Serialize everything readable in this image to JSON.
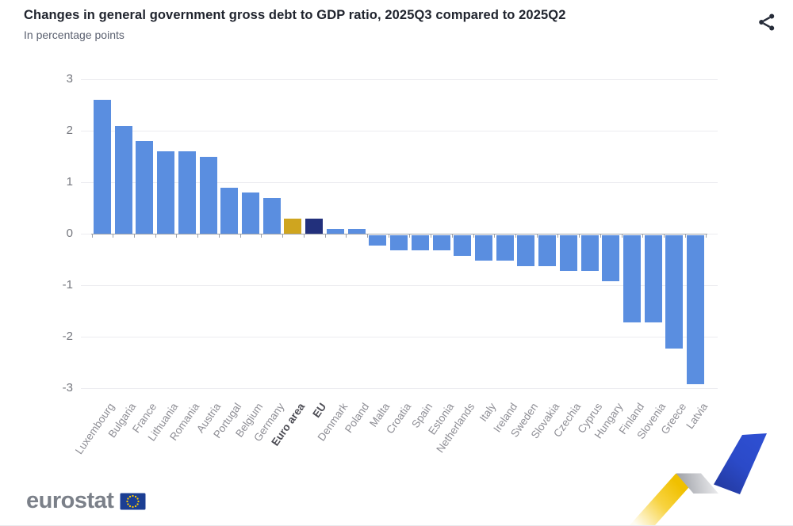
{
  "header": {
    "title": "Changes in general government gross debt to GDP ratio, 2025Q3 compared to 2025Q2",
    "subtitle": "In percentage points",
    "share_icon": "share-icon"
  },
  "chart_data": {
    "type": "bar",
    "title": "Changes in general government gross debt to GDP ratio, 2025Q3 compared to 2025Q2",
    "xlabel": "",
    "ylabel": "percentage points",
    "ylim": [
      -3,
      3
    ],
    "yticks": [
      3,
      2,
      1,
      0,
      -1,
      -2,
      -3
    ],
    "grid": true,
    "legend": false,
    "categories": [
      "Luxembourg",
      "Bulgaria",
      "France",
      "Lithuania",
      "Romania",
      "Austria",
      "Portugal",
      "Belgium",
      "Germany",
      "Euro area",
      "EU",
      "Denmark",
      "Poland",
      "Malta",
      "Croatia",
      "Spain",
      "Estonia",
      "Netherlands",
      "Italy",
      "Ireland",
      "Sweden",
      "Slovakia",
      "Czechia",
      "Cyprus",
      "Hungary",
      "Finland",
      "Slovenia",
      "Greece",
      "Latvia"
    ],
    "values": [
      2.6,
      2.1,
      1.8,
      1.6,
      1.6,
      1.5,
      0.9,
      0.8,
      0.7,
      0.3,
      0.3,
      0.1,
      0.1,
      -0.2,
      -0.3,
      -0.3,
      -0.3,
      -0.4,
      -0.5,
      -0.5,
      -0.6,
      -0.6,
      -0.7,
      -0.7,
      -0.9,
      -1.7,
      -1.7,
      -2.2,
      -2.9
    ],
    "bar_color_default": "#5A8EE0",
    "highlight_colors": {
      "Euro area": "#CFA51F",
      "EU": "#22307C"
    },
    "bold_categories": [
      "Euro area",
      "EU"
    ],
    "axis_color": "#9DA1A9",
    "gridline_color": "#ECECF0"
  },
  "footer": {
    "brand": "eurostat",
    "flag_icon": "eu-flag-icon",
    "ribbon_icon": "eurostat-ribbon-decoration",
    "colors": {
      "flag_blue": "#1B3E93",
      "star_yellow": "#FFCC00",
      "ribbon_yellow": "#F2C300",
      "ribbon_silver": "#C9CBD0",
      "ribbon_blue": "#2B4AC8"
    }
  }
}
